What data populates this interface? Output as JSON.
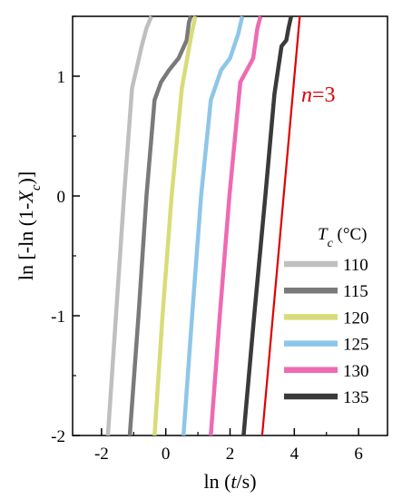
{
  "chart_data": {
    "type": "line",
    "xlabel": {
      "prefix": "ln (",
      "var": "t",
      "suffix": "/s)"
    },
    "ylabel": {
      "prefix": "ln [-ln (1-",
      "var": "X",
      "sub": "c",
      "suffix": ")]"
    },
    "xlim": [
      -2.9,
      6.9
    ],
    "ylim": [
      -2.0,
      1.5
    ],
    "xticks": [
      -2,
      0,
      2,
      4,
      6
    ],
    "xtick_labels": [
      "-2",
      "0",
      "2",
      "4",
      "6"
    ],
    "yticks": [
      -2,
      -1,
      0,
      1
    ],
    "ytick_labels": [
      "-2",
      "-1",
      "0",
      "1"
    ],
    "grid": false,
    "legend": {
      "placement": "bottom-right",
      "title": {
        "var": "T",
        "sub": "c",
        "suffix": " (°C)"
      }
    },
    "series": [
      {
        "name": "110",
        "color": "#bfbfbf",
        "x": [
          -1.8,
          -1.55,
          -1.3,
          -1.05,
          -0.92,
          -0.75,
          -0.6,
          -0.45
        ],
        "y": [
          -2.0,
          -1.0,
          0.0,
          0.9,
          1.05,
          1.25,
          1.4,
          1.5
        ]
      },
      {
        "name": "115",
        "color": "#7a7a7a",
        "x": [
          -1.12,
          -0.85,
          -0.6,
          -0.35,
          -0.15,
          0.1,
          0.4,
          0.65,
          0.72,
          0.78
        ],
        "y": [
          -2.0,
          -1.0,
          0.0,
          0.8,
          0.95,
          1.05,
          1.15,
          1.3,
          1.45,
          1.5
        ]
      },
      {
        "name": "120",
        "color": "#d8dc78",
        "x": [
          -0.35,
          -0.1,
          0.18,
          0.5,
          0.8,
          0.92
        ],
        "y": [
          -2.0,
          -1.0,
          0.0,
          0.9,
          1.35,
          1.5
        ]
      },
      {
        "name": "125",
        "color": "#8ec6ea",
        "x": [
          0.55,
          0.82,
          1.1,
          1.4,
          1.72,
          2.0,
          2.25,
          2.38
        ],
        "y": [
          -2.0,
          -1.0,
          0.0,
          0.8,
          1.05,
          1.15,
          1.35,
          1.5
        ]
      },
      {
        "name": "130",
        "color": "#ee6ab2",
        "x": [
          1.4,
          1.68,
          1.98,
          2.32,
          2.62,
          2.72,
          2.85,
          2.95
        ],
        "y": [
          -2.0,
          -1.0,
          0.0,
          0.95,
          1.1,
          1.15,
          1.4,
          1.5
        ]
      },
      {
        "name": "135",
        "color": "#3a3a3a",
        "x": [
          2.42,
          2.75,
          3.1,
          3.38,
          3.6,
          3.75,
          3.82,
          3.9
        ],
        "y": [
          -2.0,
          -1.0,
          0.0,
          0.85,
          1.25,
          1.3,
          1.4,
          1.5
        ]
      }
    ],
    "reference_line": {
      "label": {
        "var": "n",
        "text": "=3"
      },
      "color": "#e00000",
      "x": [
        3.0,
        4.17
      ],
      "y": [
        -2.0,
        1.5
      ]
    }
  }
}
